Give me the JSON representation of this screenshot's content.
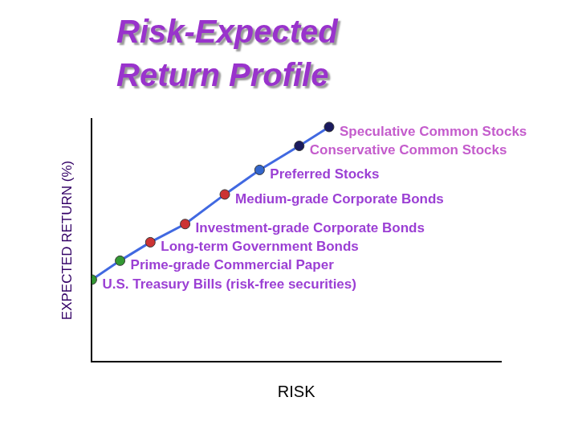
{
  "chart_data": {
    "type": "line",
    "title": "Risk-Expected Return Profile",
    "x_label": "RISK",
    "y_label": "EXPECTED RETURN (%)",
    "x": [
      0,
      6.9,
      14.3,
      22.8,
      32.5,
      41,
      50.7,
      58
    ],
    "values": [
      33.8,
      41.6,
      49.2,
      56.7,
      68.9,
      79,
      88.9,
      96.7
    ],
    "point_labels": [
      "U.S. Treasury Bills (risk-free securities)",
      "Prime-grade Commercial Paper",
      "Long-term Government Bonds",
      "Investment-grade Corporate Bonds",
      "Medium-grade Corporate Bonds",
      "Preferred Stocks",
      "Conservative Common Stocks",
      "Speculative Common Stocks"
    ],
    "color": "#4169e1",
    "colors": [
      "#339933",
      "#339933",
      "#cc3333",
      "#cc3333",
      "#cc3333",
      "#3366cc",
      "#1a1a5e",
      "#1a1a5e"
    ],
    "marker": "circle",
    "xlim": [
      0,
      100
    ],
    "ylim": [
      0,
      100
    ],
    "tick_labels": false,
    "grid": false
  }
}
